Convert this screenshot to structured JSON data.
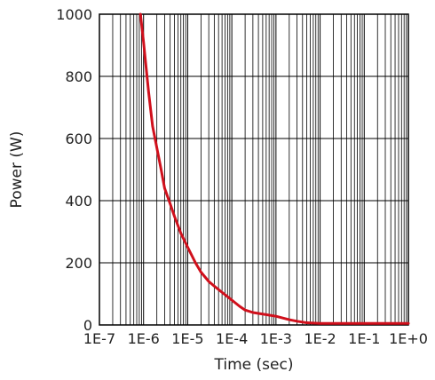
{
  "chart_data": {
    "type": "line",
    "title": "",
    "xlabel": "Time (sec)",
    "ylabel": "Power (W)",
    "x_scale": "log",
    "xlim": [
      1e-07,
      1
    ],
    "ylim": [
      0,
      1000
    ],
    "grid": true,
    "x_tick_labels": [
      "1E-7",
      "1E-6",
      "1E-5",
      "1E-4",
      "1E-3",
      "1E-2",
      "1E-1",
      "1E+0"
    ],
    "x_tick_values": [
      1e-07,
      1e-06,
      1e-05,
      0.0001,
      0.001,
      0.01,
      0.1,
      1
    ],
    "y_ticks": [
      0,
      200,
      400,
      600,
      800,
      1000
    ],
    "series": [
      {
        "color": "#d0101c",
        "x": [
          8.5e-07,
          1e-06,
          1.3e-06,
          1.6e-06,
          2e-06,
          2.5e-06,
          3e-06,
          4e-06,
          5e-06,
          7e-06,
          1e-05,
          1.5e-05,
          2e-05,
          3e-05,
          4e-05,
          6e-05,
          0.0001,
          0.00015,
          0.0002,
          0.0003,
          0.0005,
          0.001,
          0.002,
          0.003,
          0.005,
          0.01,
          0.03,
          0.1,
          0.3,
          1
        ],
        "y": [
          1000,
          910,
          750,
          640,
          570,
          500,
          440,
          390,
          350,
          295,
          250,
          200,
          170,
          140,
          125,
          105,
          80,
          60,
          48,
          40,
          35,
          28,
          17,
          12,
          7,
          5,
          5,
          5,
          5,
          5
        ]
      }
    ]
  }
}
